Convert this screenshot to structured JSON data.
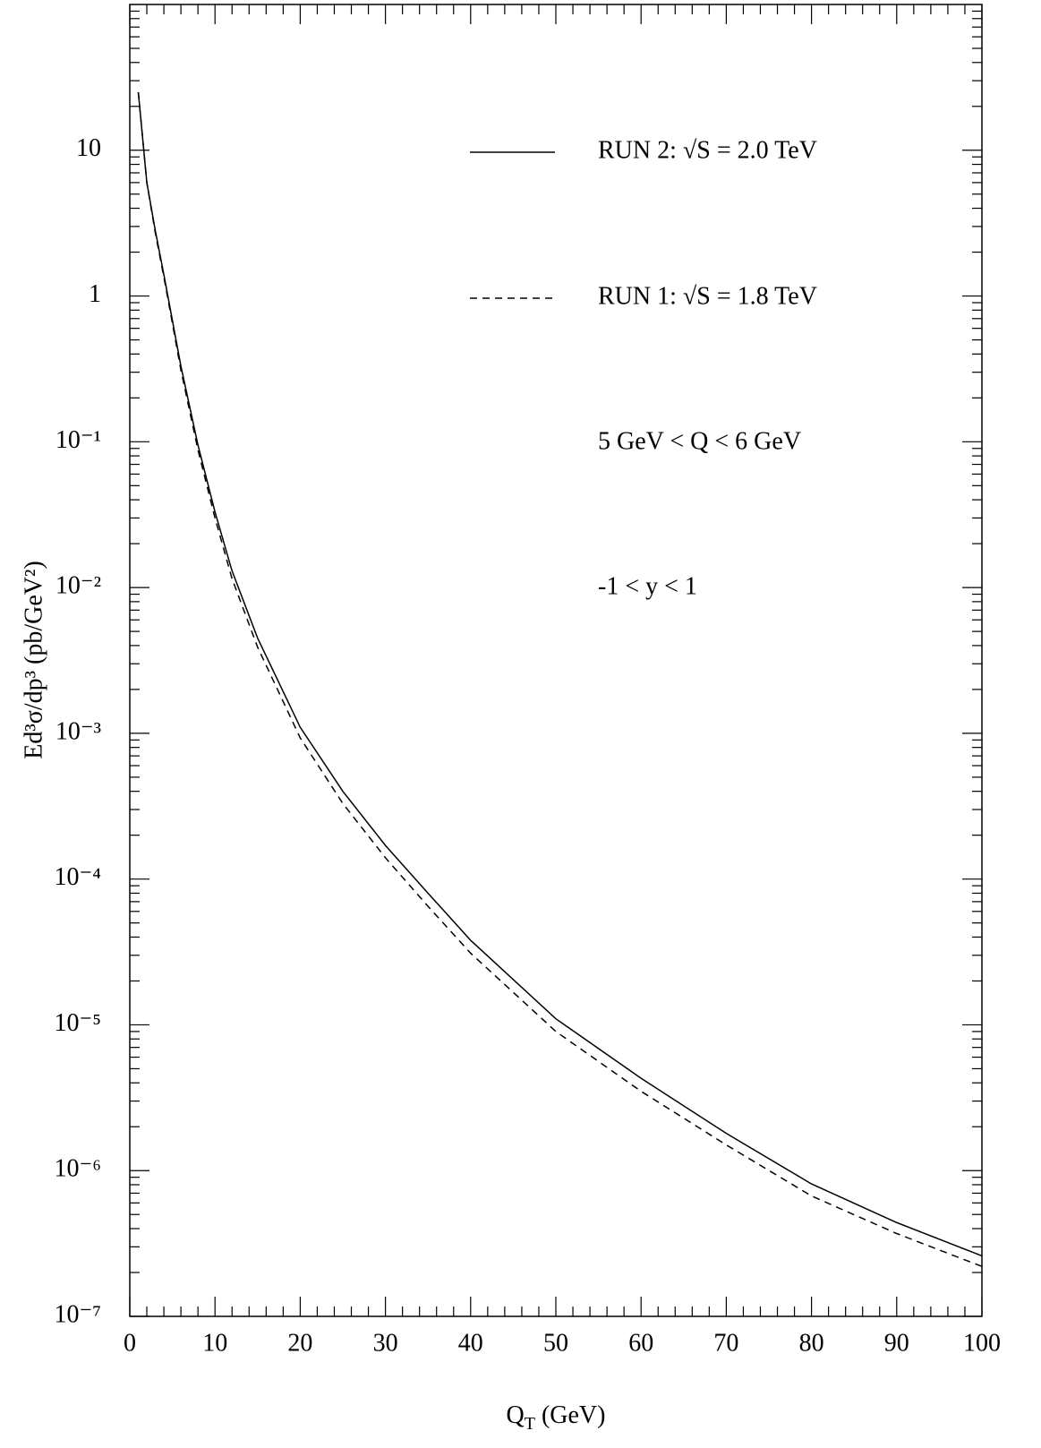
{
  "chart_data": {
    "type": "line",
    "ylabel": "Ed³σ/dp³ (pb/GeV²)",
    "xlabel": [
      "Q",
      "T",
      " (GeV)"
    ],
    "annotations": [
      "5 GeV < Q < 6 GeV",
      "-1 < y < 1"
    ],
    "x": [
      1,
      2,
      3,
      4,
      5,
      6,
      8,
      10,
      12,
      15,
      20,
      25,
      30,
      35,
      40,
      50,
      60,
      70,
      80,
      90,
      100
    ],
    "series": [
      {
        "name": "RUN 2: √S = 2.0 TeV",
        "color": "#000000",
        "dash": "solid",
        "values": [
          25,
          6,
          2.8,
          1.4,
          0.68,
          0.33,
          0.095,
          0.033,
          0.013,
          0.0045,
          0.0011,
          0.0004,
          0.00017,
          8e-05,
          3.8e-05,
          1.1e-05,
          4.3e-06,
          1.8e-06,
          8.1e-07,
          4.4e-07,
          2.6e-07
        ]
      },
      {
        "name": "RUN 1: √S = 1.8 TeV",
        "color": "#000000",
        "dash": "dashed",
        "values": [
          25,
          6,
          2.7,
          1.35,
          0.65,
          0.31,
          0.088,
          0.03,
          0.0115,
          0.0039,
          0.00093,
          0.00033,
          0.00014,
          6.5e-05,
          3.1e-05,
          9e-06,
          3.5e-06,
          1.5e-06,
          6.7e-07,
          3.7e-07,
          2.2e-07
        ]
      }
    ],
    "xlim": [
      0,
      100
    ],
    "xticks": [
      0,
      10,
      20,
      30,
      40,
      50,
      60,
      70,
      80,
      90,
      100
    ],
    "ylim": [
      1e-07,
      100
    ],
    "ylog": true,
    "yticks": [
      {
        "value": 1e-07,
        "label": "10⁻⁷"
      },
      {
        "value": 1e-06,
        "label": "10⁻⁶"
      },
      {
        "value": 1e-05,
        "label": "10⁻⁵"
      },
      {
        "value": 0.0001,
        "label": "10⁻⁴"
      },
      {
        "value": 0.001,
        "label": "10⁻³"
      },
      {
        "value": 0.01,
        "label": "10⁻²"
      },
      {
        "value": 0.1,
        "label": "10⁻¹"
      },
      1,
      10
    ]
  }
}
